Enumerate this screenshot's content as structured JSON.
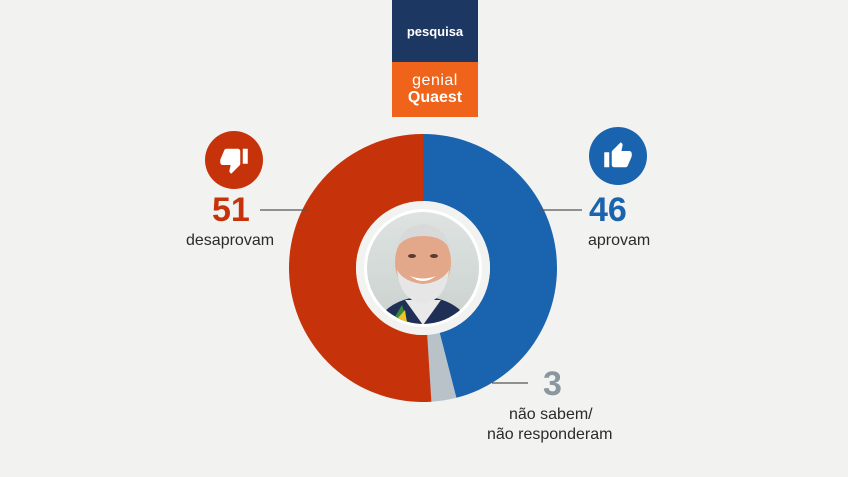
{
  "brand": {
    "top_label": "pesquisa",
    "logo_line1": "genial",
    "logo_line2": "Quaest"
  },
  "chart_data": {
    "type": "pie",
    "categories": [
      "desaprovam",
      "aprovam",
      "não sabem/ não responderam"
    ],
    "values": [
      51,
      46,
      3
    ],
    "colors": [
      "#c6330b",
      "#1a63ae",
      "#b9c2c8"
    ],
    "title": ""
  },
  "labels": {
    "disapprove": {
      "value": "51",
      "text": "desaprovam",
      "icon": "thumbs-down-icon"
    },
    "approve": {
      "value": "46",
      "text": "aprovam",
      "icon": "thumbs-up-icon"
    },
    "unknown": {
      "value": "3",
      "line1": "não sabem/",
      "line2": "não responderam"
    }
  }
}
